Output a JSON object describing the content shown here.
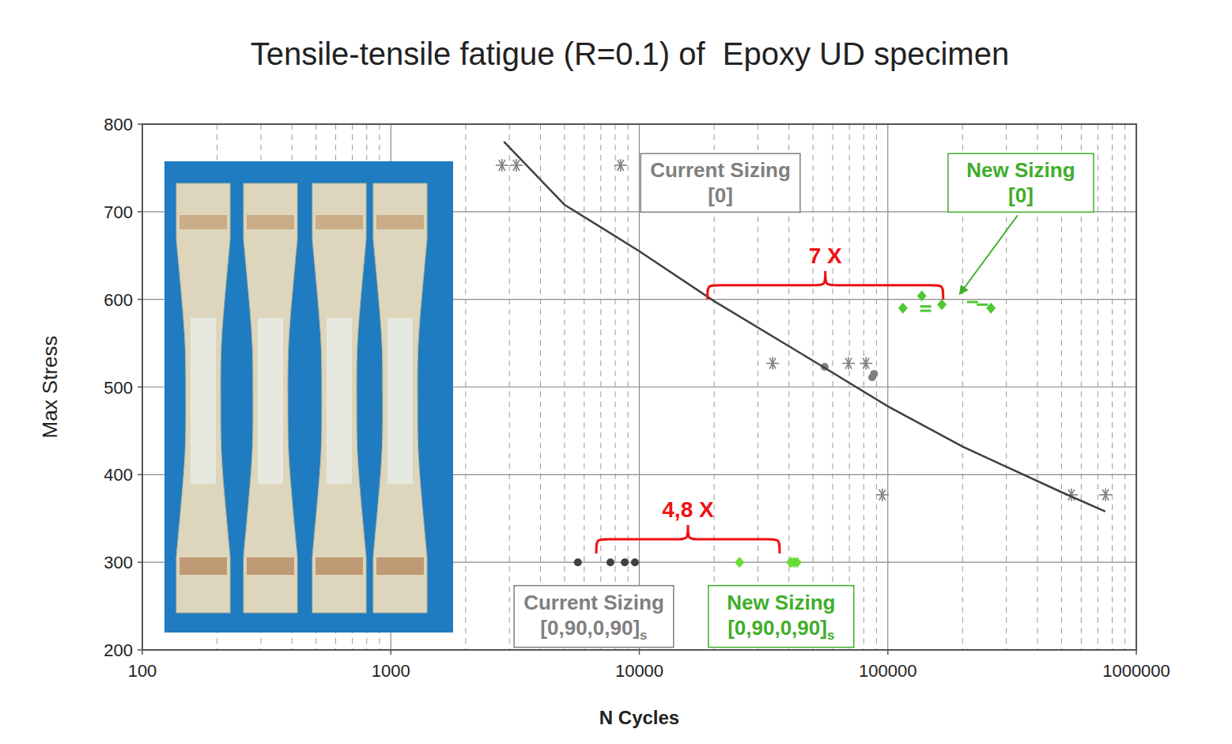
{
  "chart_data": {
    "type": "scatter",
    "title": "Tensile-tensile fatigue (R=0.1) of  Epoxy UD specimen",
    "x_label": "N Cycles",
    "y_label": "Max Stress",
    "log": "x",
    "grid": true,
    "xlim": [
      100,
      1000000
    ],
    "ylim": [
      200,
      800
    ],
    "xticks": [
      100,
      1000,
      10000,
      100000,
      1000000
    ],
    "xminor_ticks": [
      200,
      300,
      400,
      500,
      600,
      700,
      800,
      900,
      2000,
      3000,
      4000,
      5000,
      6000,
      7000,
      8000,
      9000,
      20000,
      30000,
      40000,
      50000,
      60000,
      70000,
      80000,
      90000,
      200000,
      300000,
      400000,
      500000,
      600000,
      700000,
      800000,
      900000
    ],
    "yticks": [
      200,
      300,
      400,
      500,
      600,
      700,
      800
    ],
    "series": [
      {
        "color": "#808080",
        "marker": "asterisk",
        "x": [
          2800,
          3200,
          8400,
          34400,
          69500,
          81700,
          95000,
          548000,
          752000
        ],
        "values": [
          753,
          753,
          753,
          527,
          527,
          527,
          377,
          377,
          377
        ]
      },
      {
        "color": "#808080",
        "marker": "circle",
        "x": [
          55700,
          86500,
          88000
        ],
        "values": [
          523,
          511,
          515
        ]
      },
      {
        "color": "#4ec832",
        "marker": "diamond",
        "x": [
          115000,
          137000,
          165000,
          260000
        ],
        "values": [
          590,
          604,
          594,
          590
        ]
      },
      {
        "color": "#4ec832",
        "marker": "dash",
        "x": [
          142000,
          142000,
          219000,
          240000
        ],
        "values": [
          592,
          587,
          597,
          594
        ]
      },
      {
        "color": "#404040",
        "marker": "circle",
        "x": [
          5660,
          7650,
          8740,
          9600
        ],
        "values": [
          300,
          300,
          300,
          300
        ]
      },
      {
        "color": "#66dd33",
        "marker": "diamond",
        "x": [
          25300,
          40700,
          41900,
          43100
        ],
        "values": [
          300,
          300,
          300,
          300
        ]
      },
      {
        "type": "line",
        "color": "#404040",
        "marker": "none",
        "line_style": "solid",
        "x": [
          2850,
          5000,
          10000,
          20000,
          50000,
          100000,
          200000,
          500000,
          750000
        ],
        "values": [
          780,
          708,
          655,
          598,
          530,
          478,
          432,
          380,
          358
        ]
      }
    ],
    "annotations": [
      {
        "type": "box",
        "lines": [
          "Current Sizing",
          "[0]"
        ],
        "color": "#808080",
        "x": 21200,
        "y": 733
      },
      {
        "type": "box",
        "lines": [
          "New Sizing",
          "[0]"
        ],
        "color": "#3fae2a",
        "x": 343000,
        "y": 733,
        "arrow_to": [
          190000,
          602
        ]
      },
      {
        "type": "box",
        "lines": [
          "Current Sizing",
          "[0,90,0,90]"
        ],
        "subscript": "s",
        "color": "#808080",
        "x": 6560,
        "y": 240
      },
      {
        "type": "box",
        "lines": [
          "New Sizing",
          "[0,90,0,90]"
        ],
        "subscript": "s",
        "color": "#3fae2a",
        "x": 37200,
        "y": 240
      },
      {
        "type": "brace",
        "text": "7 X",
        "color": "#ee1111",
        "from": 18800,
        "to": 167000,
        "y": 600
      },
      {
        "type": "brace",
        "text": "4,8 X",
        "color": "#ee1111",
        "from": 6710,
        "to": 36700,
        "y": 310
      }
    ]
  }
}
